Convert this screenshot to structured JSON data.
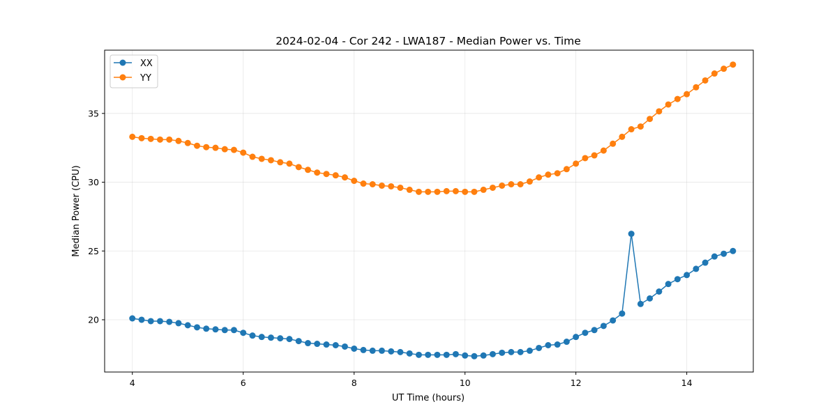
{
  "chart_data": {
    "type": "line",
    "title": "2024-02-04 - Cor 242 - LWA187 - Median Power vs. Time",
    "xlabel": "UT Time (hours)",
    "ylabel": "Median Power (CPU)",
    "xlim": [
      3.5,
      15.2
    ],
    "ylim": [
      16.2,
      39.6
    ],
    "xticks": [
      4,
      6,
      8,
      10,
      12,
      14
    ],
    "xtick_labels": [
      "4",
      "6",
      "8",
      "10",
      "12",
      "14"
    ],
    "yticks": [
      20,
      25,
      30,
      35
    ],
    "ytick_labels": [
      "20",
      "25",
      "30",
      "35"
    ],
    "grid": true,
    "legend_position": "top-left",
    "x": [
      4.0,
      4.167,
      4.333,
      4.5,
      4.667,
      4.833,
      5.0,
      5.167,
      5.333,
      5.5,
      5.667,
      5.833,
      6.0,
      6.167,
      6.333,
      6.5,
      6.667,
      6.833,
      7.0,
      7.167,
      7.333,
      7.5,
      7.667,
      7.833,
      8.0,
      8.167,
      8.333,
      8.5,
      8.667,
      8.833,
      9.0,
      9.167,
      9.333,
      9.5,
      9.667,
      9.833,
      10.0,
      10.167,
      10.333,
      10.5,
      10.667,
      10.833,
      11.0,
      11.167,
      11.333,
      11.5,
      11.667,
      11.833,
      12.0,
      12.167,
      12.333,
      12.5,
      12.667,
      12.833,
      13.0,
      13.167,
      13.333,
      13.5,
      13.667,
      13.833,
      14.0,
      14.167,
      14.333,
      14.5,
      14.667,
      14.833
    ],
    "series": [
      {
        "name": "XX",
        "color": "#1f77b4",
        "values": [
          20.1,
          20.0,
          19.9,
          19.9,
          19.85,
          19.75,
          19.6,
          19.45,
          19.35,
          19.3,
          19.25,
          19.25,
          19.05,
          18.85,
          18.75,
          18.7,
          18.65,
          18.6,
          18.45,
          18.3,
          18.25,
          18.2,
          18.15,
          18.05,
          17.9,
          17.8,
          17.75,
          17.75,
          17.7,
          17.65,
          17.55,
          17.45,
          17.45,
          17.45,
          17.45,
          17.5,
          17.4,
          17.35,
          17.4,
          17.5,
          17.6,
          17.65,
          17.65,
          17.75,
          17.95,
          18.15,
          18.2,
          18.4,
          18.75,
          19.05,
          19.25,
          19.55,
          19.95,
          20.45,
          26.25,
          21.15,
          21.55,
          22.05,
          22.6,
          22.95,
          23.25,
          23.7,
          24.15,
          24.6,
          24.8,
          25.0
        ]
      },
      {
        "name": "YY",
        "color": "#ff7f0e",
        "values": [
          33.3,
          33.2,
          33.15,
          33.1,
          33.1,
          33.0,
          32.85,
          32.65,
          32.55,
          32.5,
          32.4,
          32.35,
          32.15,
          31.85,
          31.7,
          31.6,
          31.45,
          31.35,
          31.1,
          30.9,
          30.7,
          30.6,
          30.5,
          30.35,
          30.1,
          29.9,
          29.85,
          29.75,
          29.7,
          29.6,
          29.45,
          29.3,
          29.3,
          29.3,
          29.35,
          29.35,
          29.3,
          29.3,
          29.45,
          29.6,
          29.75,
          29.85,
          29.85,
          30.05,
          30.35,
          30.55,
          30.65,
          30.95,
          31.35,
          31.75,
          31.95,
          32.3,
          32.8,
          33.3,
          33.85,
          34.05,
          34.6,
          35.15,
          35.65,
          36.05,
          36.4,
          36.9,
          37.4,
          37.9,
          38.25,
          38.55
        ]
      }
    ]
  }
}
